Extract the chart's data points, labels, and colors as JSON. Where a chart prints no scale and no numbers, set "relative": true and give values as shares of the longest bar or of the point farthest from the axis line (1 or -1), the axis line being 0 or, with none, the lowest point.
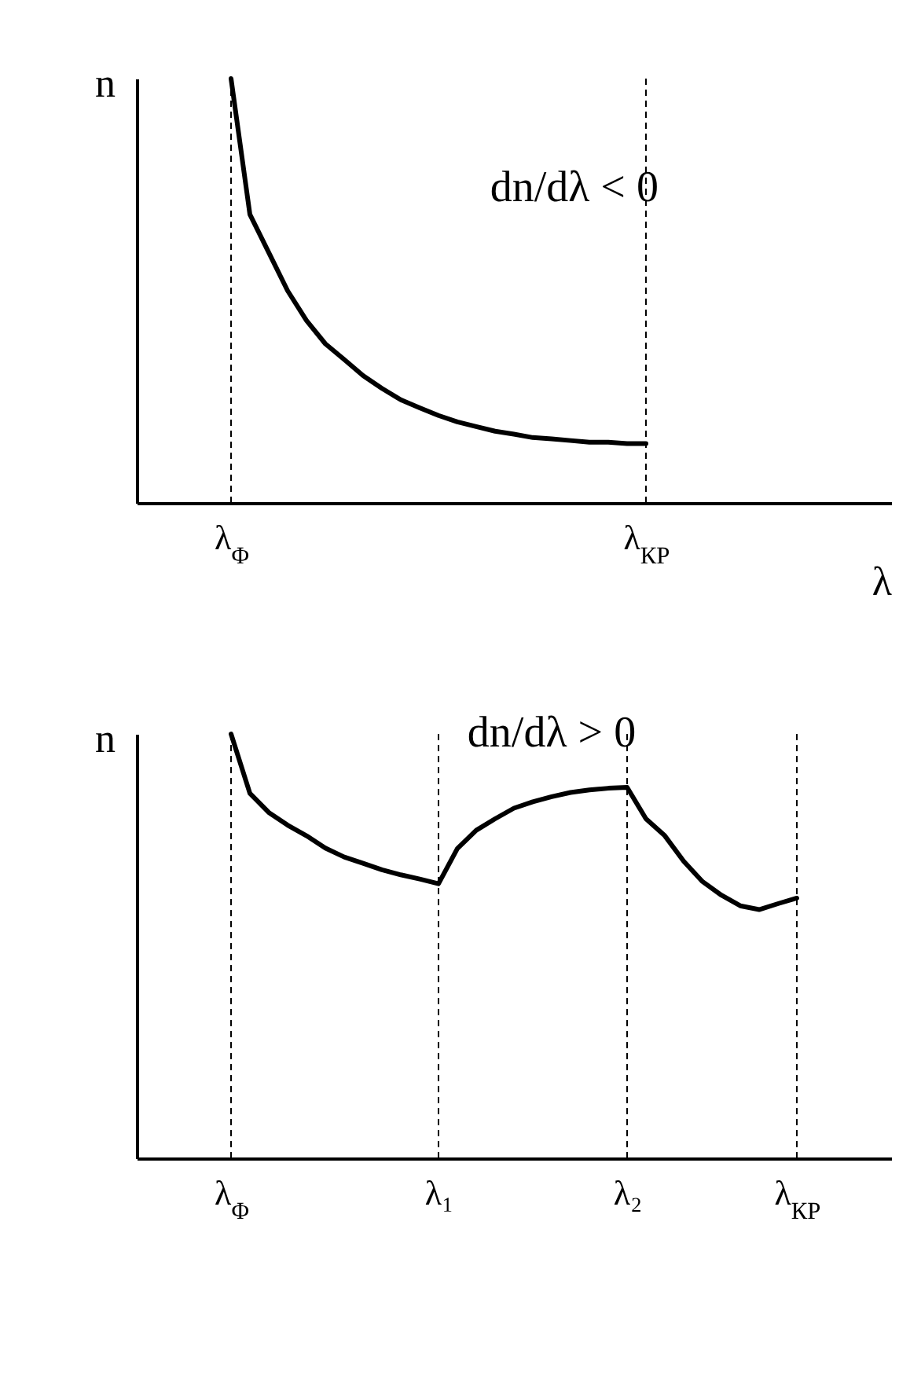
{
  "chart_data": [
    {
      "type": "line",
      "relative": true,
      "xlabel": "λ",
      "ylabel": "n",
      "annotations": [
        "dn/dλ < 0"
      ],
      "tick_labels": "x",
      "grid": false,
      "marker": "none",
      "line_style": "solid",
      "categories": [
        null,
        null,
        null,
        null,
        null,
        "λ$_{Φ}$",
        null,
        null,
        null,
        null,
        null,
        null,
        null,
        null,
        null,
        null,
        null,
        null,
        null,
        null,
        null,
        null,
        null,
        null,
        null,
        null,
        null,
        "λ$_{КР}$",
        null,
        null,
        null,
        null,
        null,
        null,
        null,
        null,
        null,
        null,
        null,
        null,
        null
      ],
      "series": [
        {
          "color": "#000000",
          "values": [
            null,
            null,
            null,
            null,
            null,
            1,
            0.68,
            0.59,
            0.5,
            0.43,
            0.375,
            0.338,
            0.3,
            0.27,
            0.243,
            0.224,
            0.206,
            0.191,
            0.18,
            0.169,
            0.162,
            0.154,
            0.151,
            0.147,
            0.143,
            0.143,
            0.14,
            0.14,
            null,
            null,
            null,
            null,
            null,
            null,
            null,
            null,
            null,
            null,
            null,
            null,
            null
          ]
        }
      ],
      "ref_lines": [
        {
          "axis": "x",
          "value": "λ$_{Φ}$",
          "line_style": "dashed"
        },
        {
          "axis": "x",
          "value": "λ$_{КР}$",
          "line_style": "dashed"
        }
      ]
    },
    {
      "type": "line",
      "relative": true,
      "ylabel": "n",
      "annotations": [
        "dn/dλ > 0"
      ],
      "tick_labels": "x",
      "grid": false,
      "marker": "none",
      "line_style": "solid",
      "categories": [
        null,
        null,
        null,
        null,
        null,
        "λ$_{Φ}$",
        null,
        null,
        null,
        null,
        null,
        null,
        null,
        null,
        null,
        null,
        "λ₁",
        null,
        null,
        null,
        null,
        null,
        null,
        null,
        null,
        null,
        "λ₂",
        null,
        null,
        null,
        null,
        null,
        null,
        null,
        null,
        "λ$_{КР}$",
        null,
        null,
        null,
        null,
        null
      ],
      "series": [
        {
          "color": "#000000",
          "values": [
            null,
            null,
            null,
            null,
            null,
            1,
            0.86,
            0.815,
            0.785,
            0.76,
            0.731,
            0.71,
            0.695,
            0.68,
            0.668,
            0.658,
            0.647,
            0.73,
            0.773,
            0.8,
            0.825,
            0.84,
            0.852,
            0.862,
            0.868,
            0.872,
            0.874,
            0.8,
            0.76,
            0.7,
            0.652,
            0.62,
            0.595,
            0.586,
            0.6,
            0.613,
            null,
            null,
            null,
            null,
            null
          ]
        }
      ],
      "ref_lines": [
        {
          "axis": "x",
          "value": "λ$_{Φ}$",
          "line_style": "dashed"
        },
        {
          "axis": "x",
          "value": "λ₁",
          "line_style": "dashed"
        },
        {
          "axis": "x",
          "value": "λ₂",
          "line_style": "dashed"
        },
        {
          "axis": "x",
          "value": "λ$_{КР}$",
          "line_style": "dashed"
        }
      ]
    }
  ]
}
